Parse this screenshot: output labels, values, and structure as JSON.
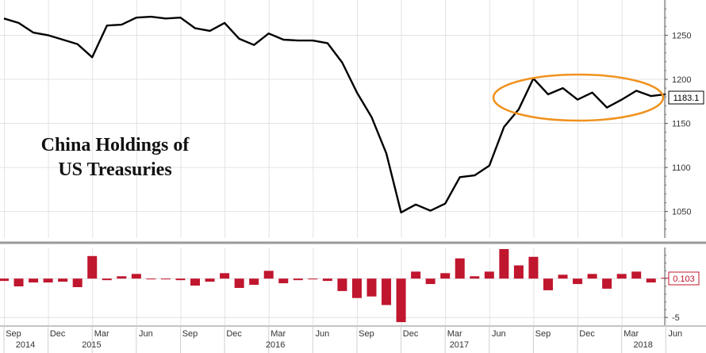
{
  "chart_data": [
    {
      "type": "line",
      "title": "China Holdings of US Treasuries",
      "title_lines": [
        "China Holdings of",
        "US Treasuries"
      ],
      "ylim": [
        1020,
        1290
      ],
      "yticks": [
        1050,
        1100,
        1150,
        1200,
        1250
      ],
      "grid": true,
      "last_value_label": "1183.1",
      "annotation": "orange ellipse highlighting mid-2017 to 2018 plateau",
      "series": [
        {
          "values": [
            1269,
            1264,
            1253,
            1250,
            1245,
            1240,
            1225,
            1261,
            1262,
            1270,
            1271,
            1269,
            1270,
            1258,
            1255,
            1264,
            1246,
            1239,
            1252,
            1245,
            1244,
            1244,
            1241,
            1219,
            1185,
            1157,
            1116,
            1049,
            1058,
            1051,
            1059,
            1089,
            1091,
            1102,
            1146,
            1166,
            1201,
            1183,
            1190,
            1177,
            1185,
            1168,
            1177,
            1187,
            1181,
            1183.1
          ],
          "color": "#000000"
        }
      ]
    },
    {
      "type": "bar",
      "ylim": [
        -6,
        4
      ],
      "yticks": [
        -5
      ],
      "last_value_label": "0.103",
      "series": [
        {
          "values": [
            -0.3,
            -1.0,
            -0.5,
            -0.5,
            -0.4,
            -1.1,
            2.9,
            -0.2,
            0.3,
            0.6,
            -0.1,
            -0.1,
            -0.2,
            -0.9,
            -0.4,
            0.7,
            -1.2,
            -0.8,
            1.0,
            -0.6,
            -0.2,
            -0.1,
            -0.3,
            -1.6,
            -2.5,
            -2.3,
            -3.4,
            -5.6,
            0.9,
            -0.7,
            0.7,
            2.6,
            0.3,
            0.9,
            3.8,
            1.7,
            2.8,
            -1.5,
            0.5,
            -0.7,
            0.6,
            -1.3,
            0.6,
            0.9,
            -0.5,
            0.1
          ],
          "color": "#c0162e"
        }
      ]
    }
  ],
  "x_axis": {
    "months": [
      "Sep",
      "Dec",
      "Mar",
      "Jun",
      "Sep",
      "Dec",
      "Mar",
      "Jun",
      "Sep",
      "Dec",
      "Mar",
      "Jun",
      "Sep",
      "Dec",
      "Mar",
      "Jun"
    ],
    "years": [
      "2014",
      "2015",
      "2016",
      "2017",
      "2018"
    ]
  },
  "colors": {
    "line": "#000000",
    "bar": "#c0162e",
    "ellipse": "#f0921e",
    "grid": "#e3e3e3",
    "separator": "#9a9a9a"
  }
}
